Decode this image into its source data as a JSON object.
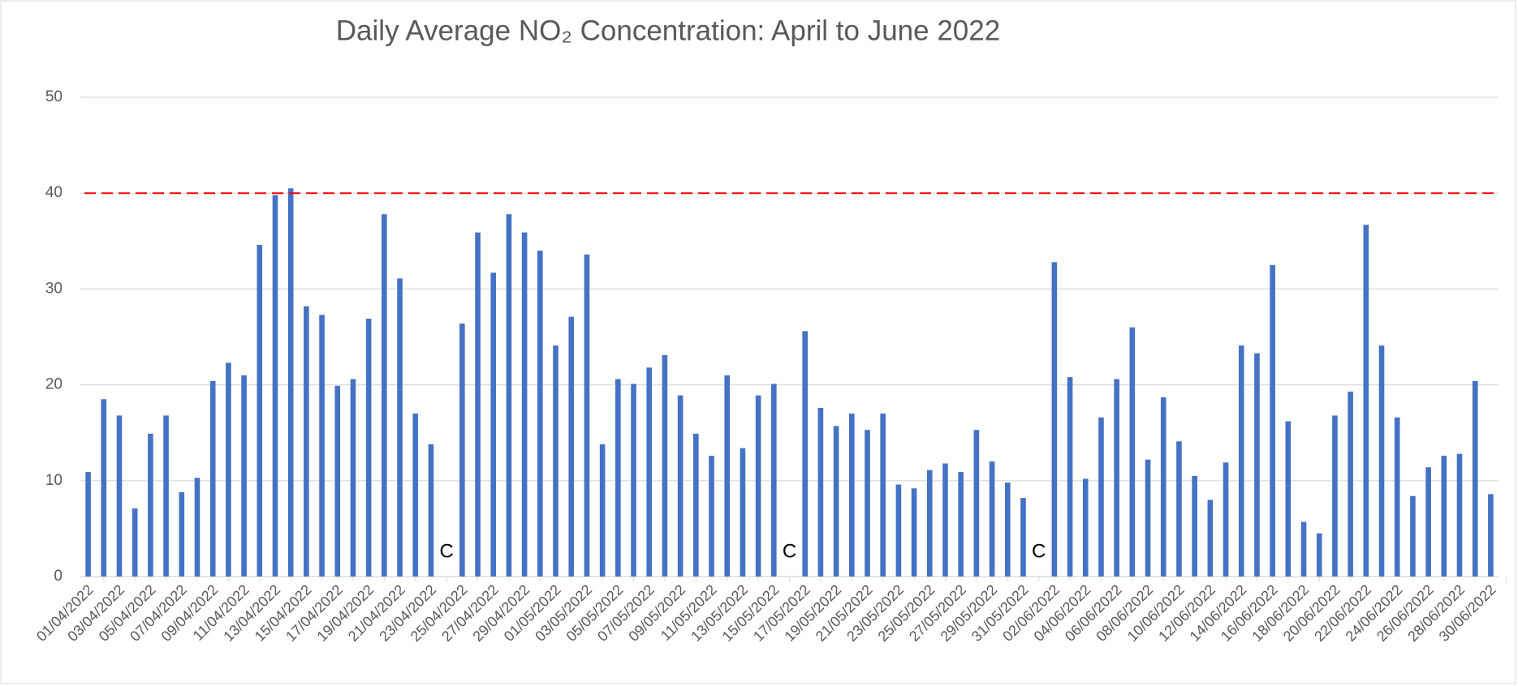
{
  "chart_data": {
    "type": "bar",
    "title": "Daily Average NO₂ Concentration: April to June 2022",
    "categories": [
      "01/04/2022",
      null,
      "03/04/2022",
      null,
      "05/04/2022",
      null,
      "07/04/2022",
      null,
      "09/04/2022",
      null,
      "11/04/2022",
      null,
      "13/04/2022",
      null,
      "15/04/2022",
      null,
      "17/04/2022",
      null,
      "19/04/2022",
      null,
      "21/04/2022",
      null,
      "23/04/2022",
      null,
      "25/04/2022",
      null,
      "27/04/2022",
      null,
      "29/04/2022",
      null,
      "01/05/2022",
      null,
      "03/05/2022",
      null,
      "05/05/2022",
      null,
      "07/05/2022",
      null,
      "09/05/2022",
      null,
      "11/05/2022",
      null,
      "13/05/2022",
      null,
      "15/05/2022",
      null,
      "17/05/2022",
      null,
      "19/05/2022",
      null,
      "21/05/2022",
      null,
      "23/05/2022",
      null,
      "25/05/2022",
      null,
      "27/05/2022",
      null,
      "29/05/2022",
      null,
      "31/05/2022",
      null,
      "02/06/2022",
      null,
      "04/06/2022",
      null,
      "06/06/2022",
      null,
      "08/06/2022",
      null,
      "10/06/2022",
      null,
      "12/06/2022",
      null,
      "14/06/2022",
      null,
      "16/06/2022",
      null,
      "18/06/2022",
      null,
      "20/06/2022",
      null,
      "22/06/2022",
      null,
      "24/06/2022",
      null,
      "26/06/2022",
      null,
      "28/06/2022",
      null,
      "30/06/2022"
    ],
    "values": [
      10.9,
      18.5,
      16.8,
      7.1,
      14.9,
      16.8,
      8.8,
      10.3,
      20.4,
      22.3,
      21.0,
      34.6,
      39.8,
      40.5,
      28.2,
      27.3,
      19.9,
      20.6,
      26.9,
      37.8,
      31.1,
      17.0,
      13.8,
      null,
      26.4,
      35.9,
      31.7,
      37.8,
      35.9,
      34.0,
      24.1,
      27.1,
      33.6,
      13.8,
      20.6,
      20.1,
      21.8,
      23.1,
      18.9,
      14.9,
      12.6,
      21.0,
      13.4,
      18.9,
      20.1,
      null,
      25.6,
      17.6,
      15.7,
      17.0,
      15.3,
      17.0,
      9.6,
      9.2,
      11.1,
      11.8,
      10.9,
      15.3,
      12.0,
      9.8,
      8.2,
      null,
      32.8,
      20.8,
      10.2,
      16.6,
      20.6,
      26.0,
      12.2,
      18.7,
      14.1,
      10.5,
      8.0,
      11.9,
      24.1,
      23.3,
      32.5,
      16.2,
      5.7,
      4.5,
      16.8,
      19.3,
      36.7,
      24.1,
      16.6,
      8.4,
      11.4,
      12.6,
      12.8,
      20.4,
      8.6
    ],
    "value_labels": [
      null,
      null,
      null,
      null,
      null,
      null,
      null,
      null,
      null,
      null,
      null,
      null,
      null,
      null,
      null,
      null,
      null,
      null,
      null,
      null,
      null,
      null,
      null,
      "C",
      null,
      null,
      null,
      null,
      null,
      null,
      null,
      null,
      null,
      null,
      null,
      null,
      null,
      null,
      null,
      null,
      null,
      null,
      null,
      null,
      null,
      "C",
      null,
      null,
      null,
      null,
      null,
      null,
      null,
      null,
      null,
      null,
      null,
      null,
      null,
      null,
      null,
      "C",
      null,
      null,
      null,
      null,
      null,
      null,
      null,
      null,
      null,
      null,
      null,
      null,
      null,
      null,
      null,
      null,
      null,
      null,
      null,
      null,
      null,
      null,
      null,
      null,
      null,
      null,
      null,
      null,
      null
    ],
    "color": "#4472c4",
    "ylim": [
      0,
      50
    ],
    "yticks": [
      0,
      10,
      20,
      30,
      40,
      50
    ],
    "grid": true,
    "reference_line": {
      "value": 40,
      "color": "#ff0000"
    }
  }
}
